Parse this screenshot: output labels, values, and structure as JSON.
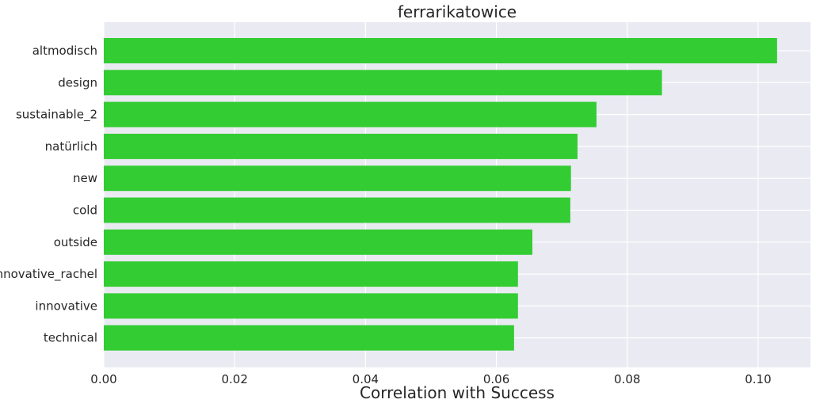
{
  "chart_data": {
    "type": "bar",
    "orientation": "horizontal",
    "title": "ferrarikatowice",
    "xlabel": "Correlation with Success",
    "ylabel": "",
    "categories": [
      "altmodisch",
      "design",
      "sustainable_2",
      "natürlich",
      "new",
      "cold",
      "outside",
      "innovative_rachel",
      "innovative",
      "technical"
    ],
    "values": [
      0.1029,
      0.0853,
      0.0753,
      0.0724,
      0.0714,
      0.0713,
      0.0655,
      0.0633,
      0.0633,
      0.0627
    ],
    "xlim": [
      0,
      0.108
    ],
    "xticks": [
      0.0,
      0.02,
      0.04,
      0.06,
      0.08,
      0.1
    ],
    "xtick_labels": [
      "0.00",
      "0.02",
      "0.04",
      "0.06",
      "0.08",
      "0.10"
    ],
    "grid": true,
    "bar_color": "#33cc33",
    "background_color": "#eaeaf2",
    "grid_color": "#ffffff"
  }
}
